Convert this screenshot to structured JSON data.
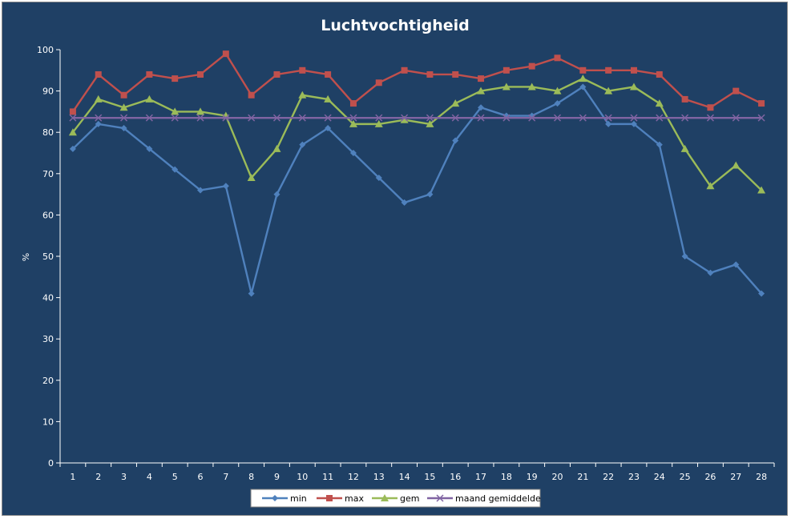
{
  "chart_data": {
    "type": "line",
    "title": "Luchtvochtigheid",
    "ylabel": "%",
    "xlabel": "",
    "ylim": [
      0,
      100
    ],
    "yticks": [
      0,
      10,
      20,
      30,
      40,
      50,
      60,
      70,
      80,
      90,
      100
    ],
    "grid": false,
    "legend_position": "bottom",
    "categories": [
      "1",
      "2",
      "3",
      "4",
      "5",
      "6",
      "7",
      "8",
      "9",
      "10",
      "11",
      "12",
      "13",
      "14",
      "15",
      "16",
      "17",
      "18",
      "19",
      "20",
      "21",
      "22",
      "23",
      "24",
      "25",
      "26",
      "27",
      "28"
    ],
    "series": [
      {
        "name": "min",
        "color": "#4f81bd",
        "marker": "diamond",
        "values": [
          76,
          82,
          81,
          76,
          71,
          66,
          67,
          41,
          65,
          77,
          81,
          75,
          69,
          63,
          65,
          78,
          86,
          84,
          84,
          87,
          91,
          82,
          82,
          77,
          50,
          46,
          48,
          41
        ]
      },
      {
        "name": "max",
        "color": "#c0504d",
        "marker": "square",
        "values": [
          85,
          94,
          89,
          94,
          93,
          94,
          99,
          89,
          94,
          95,
          94,
          87,
          92,
          95,
          94,
          94,
          93,
          95,
          96,
          98,
          95,
          95,
          95,
          94,
          88,
          86,
          90,
          87
        ]
      },
      {
        "name": "gem",
        "color": "#9bbb59",
        "marker": "triangle",
        "values": [
          80,
          88,
          86,
          88,
          85,
          85,
          84,
          69,
          76,
          89,
          88,
          82,
          82,
          83,
          82,
          87,
          90,
          91,
          91,
          90,
          93,
          90,
          91,
          87,
          76,
          67,
          72,
          66
        ]
      },
      {
        "name": "maand gemiddelde",
        "color": "#8064a2",
        "marker": "x",
        "values": [
          83.5,
          83.5,
          83.5,
          83.5,
          83.5,
          83.5,
          83.5,
          83.5,
          83.5,
          83.5,
          83.5,
          83.5,
          83.5,
          83.5,
          83.5,
          83.5,
          83.5,
          83.5,
          83.5,
          83.5,
          83.5,
          83.5,
          83.5,
          83.5,
          83.5,
          83.5,
          83.5,
          83.5
        ]
      }
    ]
  }
}
